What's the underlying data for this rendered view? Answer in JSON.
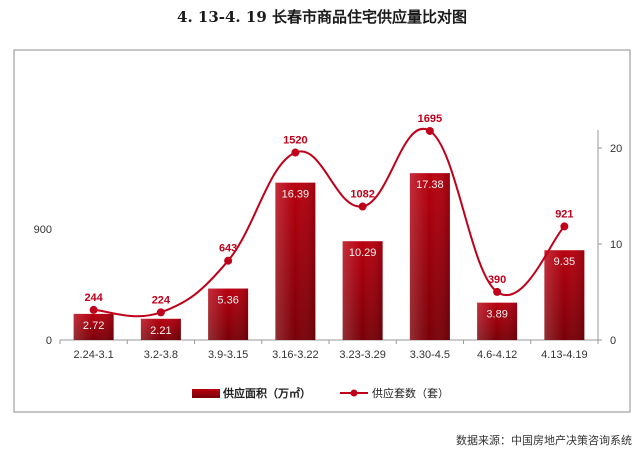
{
  "title": "4. 13-4. 19 长春市商品住宅供应量比对图",
  "source": "数据来源：中国房地产决策咨询系统",
  "chart_data": {
    "type": "bar",
    "categories": [
      "2.24-3.1",
      "3.2-3.8",
      "3.9-3.15",
      "3.16-3.22",
      "3.23-3.29",
      "3.30-4.5",
      "4.6-4.12",
      "4.13-4.19"
    ],
    "series": [
      {
        "name": "供应面积（万㎡）",
        "type": "bar",
        "axis": "right",
        "values": [
          2.72,
          2.21,
          5.36,
          16.39,
          10.29,
          17.38,
          3.89,
          9.35
        ],
        "color": "#a8000f"
      },
      {
        "name": "供应套数（套）",
        "type": "line",
        "axis": "left",
        "values": [
          244,
          224,
          643,
          1520,
          1082,
          1695,
          390,
          921
        ],
        "color": "#c0001a"
      }
    ],
    "left_axis": {
      "ticks": [
        "0",
        "900"
      ],
      "lim": [
        0,
        2340
      ]
    },
    "right_axis": {
      "ticks": [
        "0",
        "10",
        "20"
      ],
      "lim": [
        0,
        26
      ]
    },
    "legend": {
      "position": "bottom"
    }
  }
}
